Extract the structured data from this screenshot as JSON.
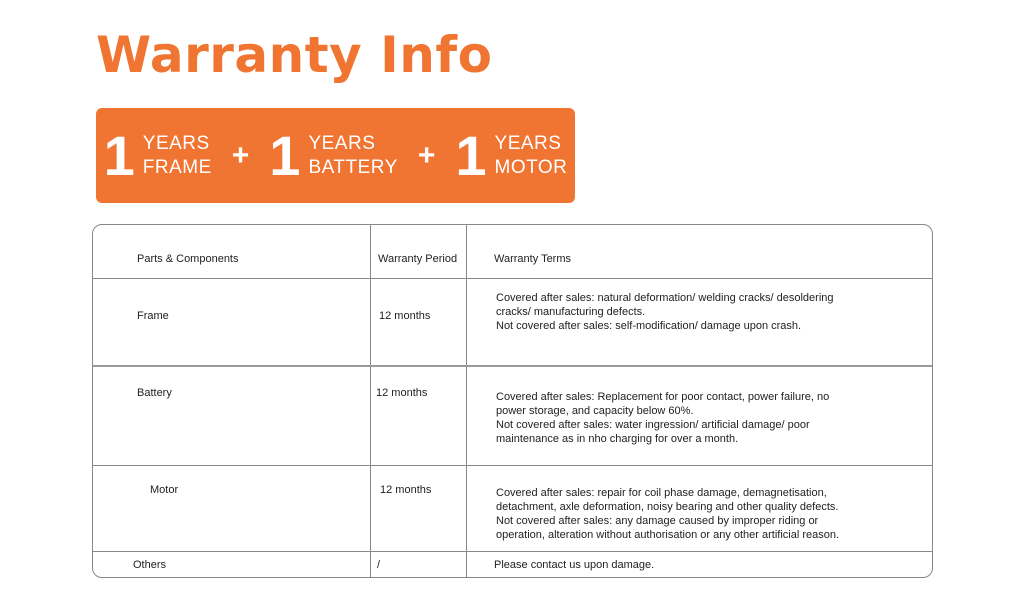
{
  "title": "Warranty Info",
  "accent_color": "#F07532",
  "banner": {
    "items": [
      {
        "number": "1",
        "line1": "YEARS",
        "line2": "FRAME"
      },
      {
        "number": "1",
        "line1": "YEARS",
        "line2": "BATTERY"
      },
      {
        "number": "1",
        "line1": "YEARS",
        "line2": "MOTOR"
      }
    ],
    "separator": "+"
  },
  "table": {
    "headers": [
      "Parts & Components",
      "Warranty Period",
      "Warranty Terms"
    ],
    "rows": [
      {
        "part": "Frame",
        "period": "12 months",
        "terms": [
          "Covered after sales: natural deformation/ welding cracks/ desoldering",
          "cracks/ manufacturing defects.",
          "Not covered after sales: self-modification/ damage upon crash."
        ]
      },
      {
        "part": "Battery",
        "period": "12 months",
        "terms": [
          "Covered after sales: Replacement for poor contact, power failure, no",
          "power storage, and capacity below 60%.",
          "Not covered after sales: water ingression/ artificial damage/ poor",
          "maintenance as in nho charging for over a month."
        ]
      },
      {
        "part": "Motor",
        "period": "12 months",
        "terms": [
          "Covered after sales:  repair for coil phase damage, demagnetisation,",
          "detachment, axle deformation, noisy bearing and other quality defects.",
          "Not covered after sales: any damage caused by improper riding or",
          "operation, alteration without authorisation or any other artificial reason."
        ]
      },
      {
        "part": "Others",
        "period": "/",
        "terms": [
          "Please contact us upon damage."
        ]
      }
    ]
  }
}
